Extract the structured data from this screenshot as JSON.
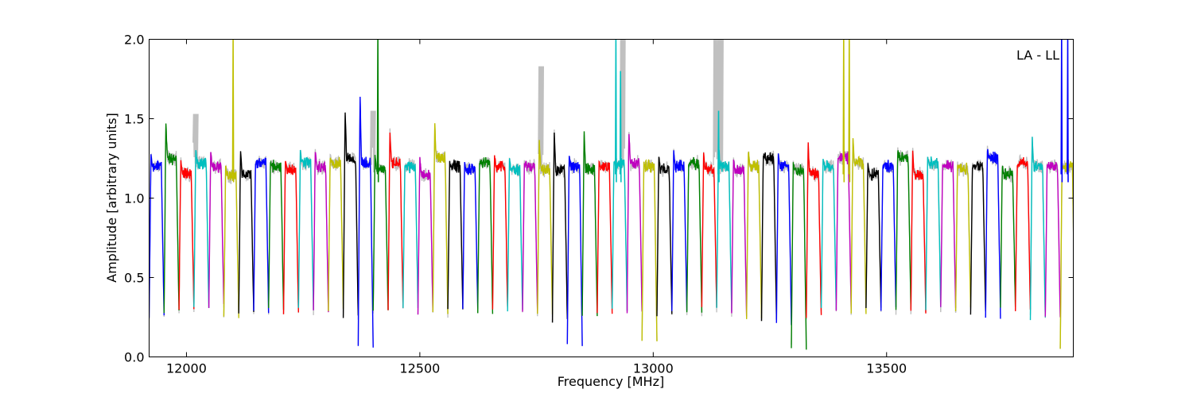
{
  "chart_data": {
    "type": "line",
    "title": "",
    "xlabel": "Frequency [MHz]",
    "ylabel": "Amplitude [arbitrary units]",
    "xlim": [
      11920,
      13900
    ],
    "ylim": [
      0.0,
      2.0
    ],
    "x_ticks": [
      12000,
      12500,
      13000,
      13500
    ],
    "y_ticks": [
      0.0,
      0.5,
      1.0,
      1.5,
      2.0
    ],
    "x_tick_labels": [
      "12000",
      "12500",
      "13000",
      "13500"
    ],
    "y_tick_labels": [
      "0.0",
      "0.5",
      "1.0",
      "1.5",
      "2.0"
    ],
    "grid": false,
    "annotation": "LA - LL",
    "annotation_position": "top-right",
    "background_series_color": "#c0c0c0",
    "channel_colors": [
      "#0000ff",
      "#008000",
      "#ff0000",
      "#00bfbf",
      "#bf00bf",
      "#bfbf00",
      "#000000"
    ],
    "channel_start_mhz": 11920,
    "channel_width_mhz": 32,
    "channel_count": 62,
    "channel_levels": [
      1.2,
      1.25,
      1.15,
      1.22,
      1.2,
      1.14,
      1.15,
      1.22,
      1.2,
      1.18,
      1.22,
      1.2,
      1.22,
      1.25,
      1.22,
      1.18,
      1.22,
      1.2,
      1.15,
      1.25,
      1.2,
      1.18,
      1.22,
      1.2,
      1.18,
      1.2,
      1.18,
      1.18,
      1.2,
      1.18,
      1.2,
      1.22,
      1.22,
      1.2,
      1.18,
      1.2,
      1.22,
      1.18,
      1.2,
      1.18,
      1.2,
      1.25,
      1.2,
      1.18,
      1.15,
      1.2,
      1.25,
      1.22,
      1.15,
      1.2,
      1.25,
      1.15,
      1.22,
      1.2,
      1.18,
      1.2,
      1.25,
      1.15,
      1.22,
      1.2,
      1.2,
      1.2
    ],
    "channel_peaks": [
      1.28,
      1.48,
      1.25,
      1.3,
      1.3,
      1.2,
      1.3,
      1.22,
      1.22,
      1.25,
      1.3,
      1.3,
      1.26,
      1.56,
      1.65,
      1.28,
      1.43,
      1.2,
      1.25,
      1.48,
      1.22,
      1.22,
      1.22,
      1.27,
      1.24,
      1.22,
      1.36,
      1.42,
      1.28,
      1.43,
      1.22,
      1.23,
      1.42,
      1.22,
      1.26,
      1.3,
      1.2,
      1.28,
      1.35,
      1.26,
      1.3,
      1.28,
      1.28,
      1.22,
      1.36,
      1.24,
      1.26,
      1.37,
      1.22,
      1.21,
      1.3,
      1.31,
      1.25,
      1.2,
      1.22,
      1.2,
      1.31,
      1.21,
      1.2,
      1.4,
      1.2,
      1.2
    ],
    "channel_troughs": [
      0.26,
      0.28,
      0.3,
      0.3,
      0.32,
      0.25,
      0.28,
      0.28,
      0.3,
      0.27,
      0.3,
      0.28,
      0.3,
      0.25,
      0.07,
      0.28,
      0.3,
      0.32,
      0.28,
      0.27,
      0.3,
      0.3,
      0.28,
      0.3,
      0.3,
      0.28,
      0.26,
      0.23,
      0.08,
      0.27,
      0.28,
      0.3,
      0.28,
      0.1,
      0.27,
      0.3,
      0.28,
      0.3,
      0.3,
      0.26,
      0.25,
      0.24,
      0.21,
      0.06,
      0.25,
      0.3,
      0.29,
      0.28,
      0.3,
      0.3,
      0.29,
      0.28,
      0.3,
      0.3,
      0.3,
      0.28,
      0.25,
      0.3,
      0.3,
      0.24,
      0.24,
      0.05
    ],
    "spikes": [
      {
        "x": 12100,
        "y": 2.0,
        "color": "#bfbf00"
      },
      {
        "x": 12410,
        "y": 2.0,
        "color": "#008000"
      },
      {
        "x": 12920,
        "y": 2.0,
        "color": "#00bfbf"
      },
      {
        "x": 12930,
        "y": 1.8,
        "color": "#00bfbf"
      },
      {
        "x": 13140,
        "y": 1.55,
        "color": "#00bfbf"
      },
      {
        "x": 13408,
        "y": 2.0,
        "color": "#bfbf00"
      },
      {
        "x": 13420,
        "y": 2.0,
        "color": "#bfbf00"
      },
      {
        "x": 13875,
        "y": 2.0,
        "color": "#0000ff"
      },
      {
        "x": 13888,
        "y": 2.0,
        "color": "#0000ff"
      }
    ],
    "background_spikes": [
      {
        "x": 12020,
        "y": 1.53
      },
      {
        "x": 12400,
        "y": 1.55
      },
      {
        "x": 12760,
        "y": 1.83
      },
      {
        "x": 12935,
        "y": 2.0
      },
      {
        "x": 13135,
        "y": 2.0
      },
      {
        "x": 13145,
        "y": 2.0
      }
    ]
  }
}
